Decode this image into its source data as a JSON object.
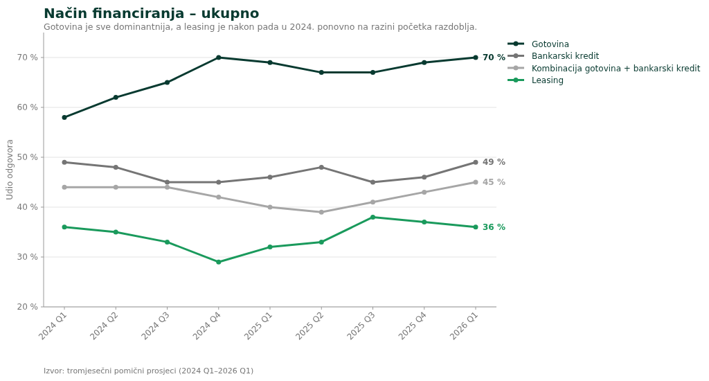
{
  "chart_data": {
    "type": "line",
    "title": "Način financiranja – ukupno",
    "subtitle": "Gotovina je sve dominantnija, a leasing je nakon pada u 2024. ponovno na razini početka razdoblja.",
    "ylabel": "Udio odgovora",
    "annotations": [
      "Izvor: tromjesečni pomični prosjeci (2024 Q1–2026 Q1)"
    ],
    "categories": [
      "2024 Q1",
      "2024 Q2",
      "2024 Q3",
      "2024 Q4",
      "2025 Q1",
      "2025 Q2",
      "2025 Q3",
      "2025 Q4",
      "2026 Q1"
    ],
    "series": [
      {
        "name": "Gotovina",
        "color": "#083a30",
        "values": [
          58,
          62,
          65,
          70,
          69,
          67,
          67,
          69,
          70
        ],
        "value_labels": [
          null,
          null,
          null,
          null,
          null,
          null,
          null,
          null,
          "70 %"
        ]
      },
      {
        "name": "Bankarski kredit",
        "color": "#757575",
        "values": [
          49,
          48,
          45,
          45,
          46,
          48,
          45,
          46,
          49
        ],
        "value_labels": [
          null,
          null,
          null,
          null,
          null,
          null,
          null,
          null,
          "49 %"
        ]
      },
      {
        "name": "Kombinacija gotovina + bankarski kredit",
        "color": "#a6a6a6",
        "values": [
          44,
          44,
          44,
          42,
          40,
          39,
          41,
          43,
          45
        ],
        "value_labels": [
          null,
          null,
          null,
          null,
          null,
          null,
          null,
          null,
          "45 %"
        ]
      },
      {
        "name": "Leasing",
        "color": "#1a9a5c",
        "values": [
          36,
          35,
          33,
          29,
          32,
          33,
          38,
          37,
          36
        ],
        "value_labels": [
          null,
          null,
          null,
          null,
          null,
          null,
          null,
          null,
          "36 %"
        ]
      }
    ],
    "ylim": [
      20,
      75
    ],
    "yticks": [
      {
        "value": 20,
        "label": "20 %"
      },
      {
        "value": 30,
        "label": "30 %"
      },
      {
        "value": 40,
        "label": "40 %"
      },
      {
        "value": 50,
        "label": "50 %"
      },
      {
        "value": 60,
        "label": "60 %"
      },
      {
        "value": 70,
        "label": "70 %"
      }
    ],
    "grid": "y",
    "legend": "top right",
    "marker": "circle",
    "line_style": "solid"
  }
}
